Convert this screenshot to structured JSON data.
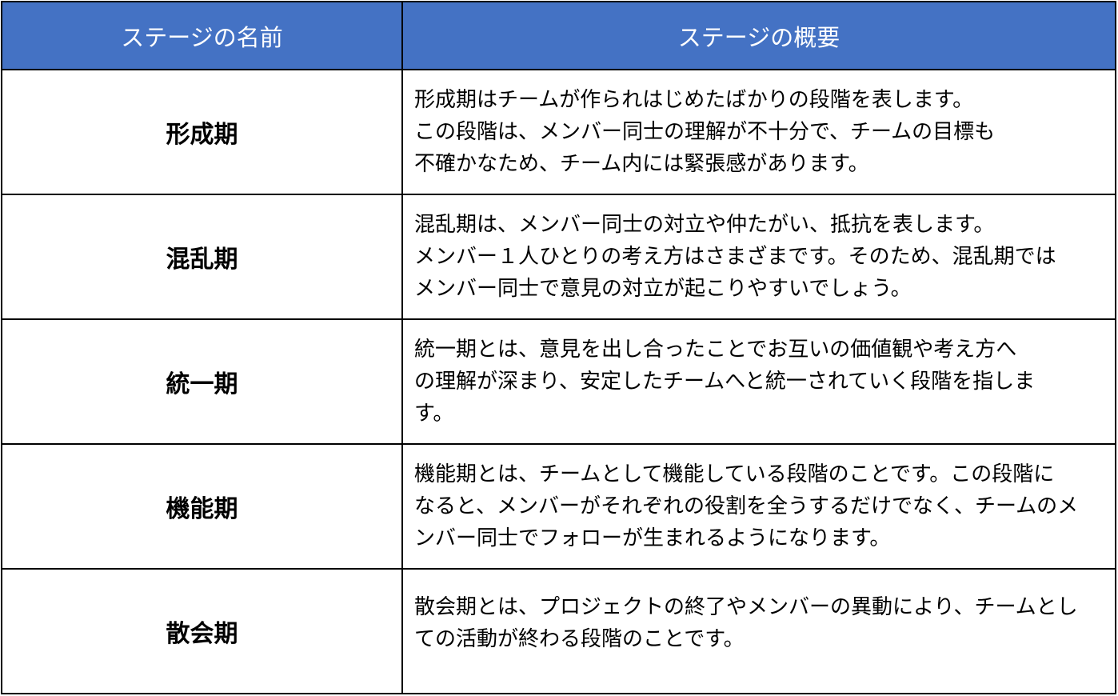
{
  "header": {
    "col_name": "ステージの名前",
    "col_summary": "ステージの概要"
  },
  "colors": {
    "header_bg": "#4472C4",
    "header_text": "#FFFFFF",
    "border": "#000000"
  },
  "rows": [
    {
      "name": "形成期",
      "lines": [
        "形成期はチームが作られはじめたばかりの段階を表します。",
        "この段階は、メンバー同士の理解が不十分で、チームの目標も",
        "不確かなため、チーム内には緊張感があります。"
      ]
    },
    {
      "name": "混乱期",
      "lines": [
        "混乱期は、メンバー同士の対立や仲たがい、抵抗を表します。",
        "メンバー１人ひとりの考え方はさまざまです。そのため、混乱期では",
        "メンバー同士で意見の対立が起こりやすいでしょう。"
      ]
    },
    {
      "name": "統一期",
      "lines": [
        "統一期とは、意見を出し合ったことでお互いの価値観や考え方へ",
        "の理解が深まり、安定したチームへと統一されていく段階を指しま",
        "す。"
      ]
    },
    {
      "name": "機能期",
      "lines": [
        "機能期とは、チームとして機能している段階のことです。この段階に",
        "なると、メンバーがそれぞれの役割を全うするだけでなく、チームのメ",
        "ンバー同士でフォローが生まれるようになります。"
      ]
    },
    {
      "name": "散会期",
      "lines": [
        "散会期とは、プロジェクトの終了やメンバーの異動により、チームとし",
        "ての活動が終わる段階のことです。"
      ]
    }
  ]
}
